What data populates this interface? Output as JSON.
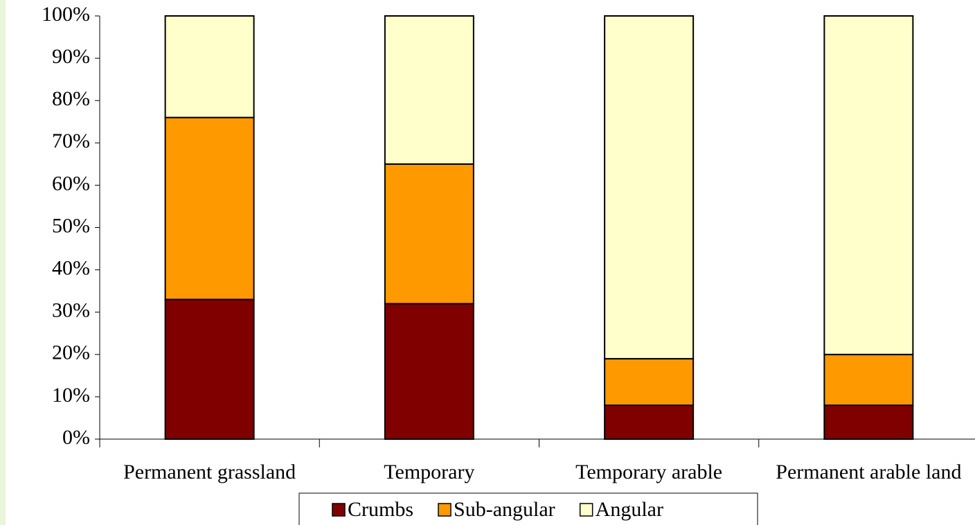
{
  "chart_data": {
    "type": "stacked_bar",
    "categories": [
      "Permanent grassland",
      "Temporary",
      "Temporary arable",
      "Permanent arable land"
    ],
    "series": [
      {
        "name": "Crumbs",
        "color": "#800000",
        "values": [
          33,
          32,
          8,
          8
        ]
      },
      {
        "name": "Sub-angular",
        "color": "#ff9900",
        "values": [
          43,
          33,
          11,
          12
        ]
      },
      {
        "name": "Angular",
        "color": "#ffffcc",
        "values": [
          24,
          35,
          81,
          80
        ]
      }
    ],
    "ylim": [
      0,
      100
    ],
    "yticks": [
      {
        "value": 0,
        "label": "0%"
      },
      {
        "value": 10,
        "label": "10%"
      },
      {
        "value": 20,
        "label": "20%"
      },
      {
        "value": 30,
        "label": "30%"
      },
      {
        "value": 40,
        "label": "40%"
      },
      {
        "value": 50,
        "label": "50%"
      },
      {
        "value": 60,
        "label": "60%"
      },
      {
        "value": 70,
        "label": "70%"
      },
      {
        "value": 80,
        "label": "80%"
      },
      {
        "value": 90,
        "label": "90%"
      },
      {
        "value": 100,
        "label": "100%"
      }
    ],
    "legend": "bottom"
  }
}
